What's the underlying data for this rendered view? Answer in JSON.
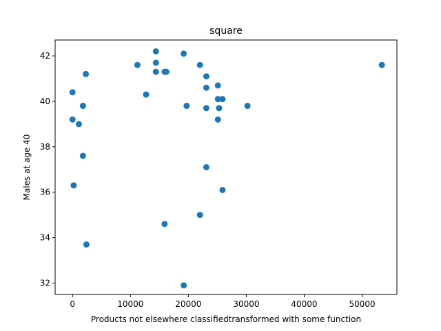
{
  "chart_data": {
    "type": "scatter",
    "title": "square",
    "xlabel": "Products not elsewhere classifiedtransformed with some function",
    "ylabel": "Males at age 40",
    "xlim": [
      -3000,
      56000
    ],
    "ylim": [
      31.5,
      42.7
    ],
    "xticks": [
      0,
      10000,
      20000,
      30000,
      40000,
      50000
    ],
    "yticks": [
      32,
      34,
      36,
      38,
      40,
      42
    ],
    "grid": false,
    "color": "#1f77b4",
    "points": [
      {
        "x": 0,
        "y": 40.4
      },
      {
        "x": 0,
        "y": 39.2
      },
      {
        "x": 200,
        "y": 36.3
      },
      {
        "x": 1100,
        "y": 39.0
      },
      {
        "x": 1800,
        "y": 39.8
      },
      {
        "x": 1800,
        "y": 37.6
      },
      {
        "x": 2300,
        "y": 41.2
      },
      {
        "x": 2400,
        "y": 33.7
      },
      {
        "x": 11200,
        "y": 41.6
      },
      {
        "x": 12700,
        "y": 40.3
      },
      {
        "x": 14400,
        "y": 42.2
      },
      {
        "x": 14400,
        "y": 41.7
      },
      {
        "x": 14400,
        "y": 41.3
      },
      {
        "x": 15900,
        "y": 41.3
      },
      {
        "x": 16200,
        "y": 41.3
      },
      {
        "x": 15900,
        "y": 34.6
      },
      {
        "x": 19200,
        "y": 42.1
      },
      {
        "x": 19200,
        "y": 31.9
      },
      {
        "x": 19700,
        "y": 39.8
      },
      {
        "x": 22000,
        "y": 41.6
      },
      {
        "x": 22000,
        "y": 35.0
      },
      {
        "x": 23100,
        "y": 41.1
      },
      {
        "x": 23100,
        "y": 40.6
      },
      {
        "x": 23100,
        "y": 39.7
      },
      {
        "x": 23100,
        "y": 37.1
      },
      {
        "x": 25100,
        "y": 40.7
      },
      {
        "x": 25100,
        "y": 40.1
      },
      {
        "x": 25300,
        "y": 39.7
      },
      {
        "x": 25100,
        "y": 39.2
      },
      {
        "x": 25900,
        "y": 40.1
      },
      {
        "x": 25900,
        "y": 36.1
      },
      {
        "x": 30200,
        "y": 39.8
      },
      {
        "x": 53400,
        "y": 41.6
      }
    ]
  }
}
